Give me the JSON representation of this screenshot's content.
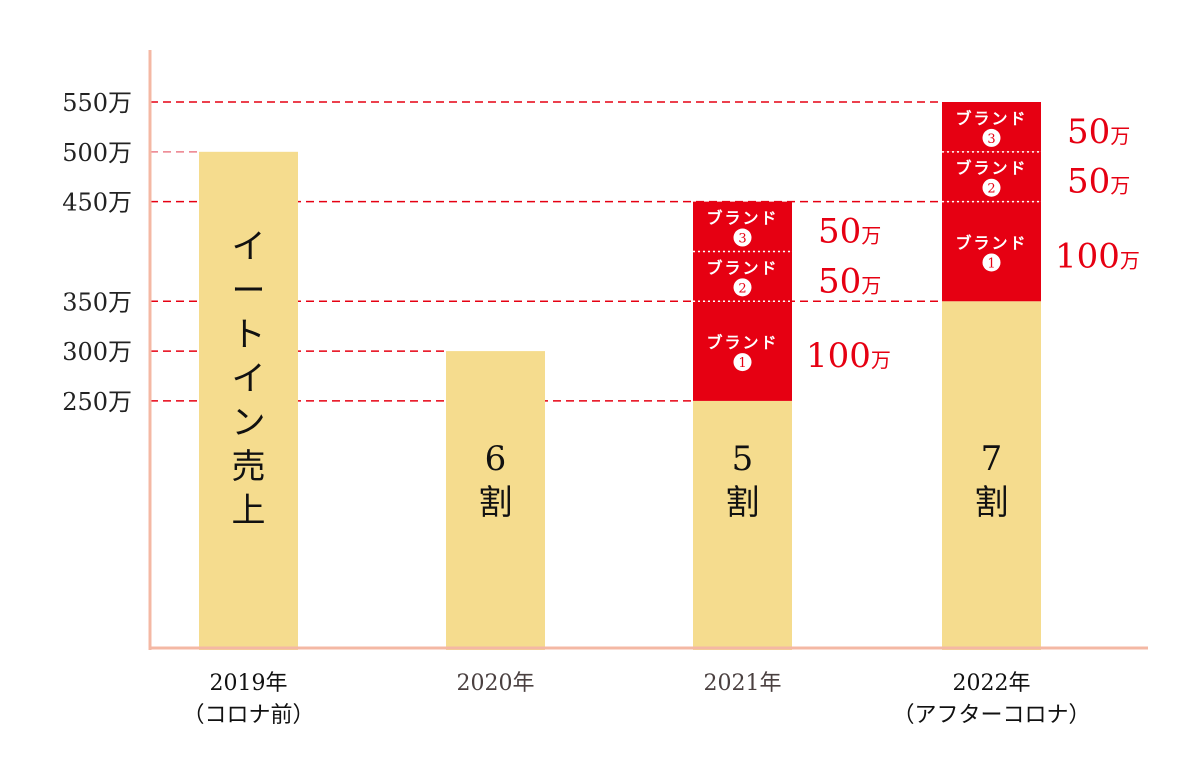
{
  "chart_data": {
    "type": "bar",
    "stacked": true,
    "categories": [
      "2019年",
      "2020年",
      "2021年",
      "2022年"
    ],
    "category_sublabels": [
      "（コロナ前）",
      "",
      "",
      "（アフターコロナ）"
    ],
    "y_ticks": [
      {
        "value": 250,
        "label": "250万"
      },
      {
        "value": 300,
        "label": "300万"
      },
      {
        "value": 350,
        "label": "350万"
      },
      {
        "value": 450,
        "label": "450万"
      },
      {
        "value": 500,
        "label": "500万"
      },
      {
        "value": 550,
        "label": "550万"
      }
    ],
    "ylim": [
      0,
      550
    ],
    "unit": "万",
    "bars": [
      {
        "base": 500,
        "base_label": [
          "イ",
          "ー",
          "ト",
          "イ",
          "ン",
          "売",
          "上"
        ],
        "segments": []
      },
      {
        "base": 300,
        "base_label": [
          "6",
          "割"
        ],
        "segments": []
      },
      {
        "base": 250,
        "base_label": [
          "5",
          "割"
        ],
        "segments": [
          {
            "name": "ブランド",
            "num": "1",
            "value": 100,
            "value_label": "100"
          },
          {
            "name": "ブランド",
            "num": "2",
            "value": 50,
            "value_label": "50"
          },
          {
            "name": "ブランド",
            "num": "3",
            "value": 50,
            "value_label": "50"
          }
        ]
      },
      {
        "base": 350,
        "base_label": [
          "7",
          "割"
        ],
        "segments": [
          {
            "name": "ブランド",
            "num": "1",
            "value": 100,
            "value_label": "100"
          },
          {
            "name": "ブランド",
            "num": "2",
            "value": 50,
            "value_label": "50"
          },
          {
            "name": "ブランド",
            "num": "3",
            "value": 50,
            "value_label": "50"
          }
        ]
      }
    ],
    "colors": {
      "base": "#F5DC8E",
      "segment": "#E60012",
      "axis": "#F4B8A4",
      "guide": "#E60012"
    }
  }
}
